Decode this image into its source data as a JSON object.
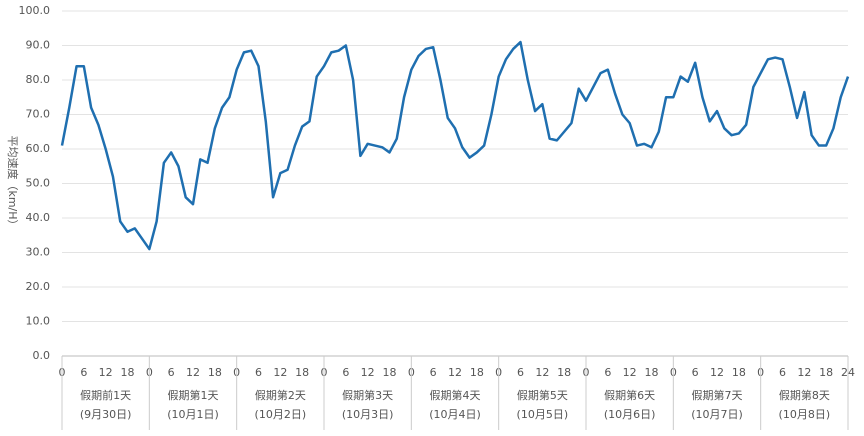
{
  "chart_data": {
    "type": "line",
    "y_label": "平均速度（km/H）",
    "color": "#1f6fb0",
    "grid": true,
    "ylim": [
      0,
      100
    ],
    "yticks": [
      {
        "value": 0,
        "label": "0.0"
      },
      {
        "value": 10,
        "label": "10.0"
      },
      {
        "value": 20,
        "label": "20.0"
      },
      {
        "value": 30,
        "label": "30.0"
      },
      {
        "value": 40,
        "label": "40.0"
      },
      {
        "value": 50,
        "label": "50.0"
      },
      {
        "value": 60,
        "label": "60.0"
      },
      {
        "value": 70,
        "label": "70.0"
      },
      {
        "value": 80,
        "label": "80.0"
      },
      {
        "value": 90,
        "label": "90.0"
      },
      {
        "value": 100,
        "label": "100.0"
      }
    ],
    "xlim": [
      0,
      216
    ],
    "xticks": [
      0,
      {
        "value": 6,
        "label": "6"
      },
      {
        "value": 12,
        "label": "12"
      },
      {
        "value": 18,
        "label": "18"
      },
      {
        "value": 24,
        "label": "0"
      },
      {
        "value": 30,
        "label": "6"
      },
      {
        "value": 36,
        "label": "12"
      },
      {
        "value": 42,
        "label": "18"
      },
      {
        "value": 48,
        "label": "0"
      },
      {
        "value": 54,
        "label": "6"
      },
      {
        "value": 60,
        "label": "12"
      },
      {
        "value": 66,
        "label": "18"
      },
      {
        "value": 72,
        "label": "0"
      },
      {
        "value": 78,
        "label": "6"
      },
      {
        "value": 84,
        "label": "12"
      },
      {
        "value": 90,
        "label": "18"
      },
      {
        "value": 96,
        "label": "0"
      },
      {
        "value": 102,
        "label": "6"
      },
      {
        "value": 108,
        "label": "12"
      },
      {
        "value": 114,
        "label": "18"
      },
      {
        "value": 120,
        "label": "0"
      },
      {
        "value": 126,
        "label": "6"
      },
      {
        "value": 132,
        "label": "12"
      },
      {
        "value": 138,
        "label": "18"
      },
      {
        "value": 144,
        "label": "0"
      },
      {
        "value": 150,
        "label": "6"
      },
      {
        "value": 156,
        "label": "12"
      },
      {
        "value": 162,
        "label": "18"
      },
      {
        "value": 168,
        "label": "0"
      },
      {
        "value": 174,
        "label": "6"
      },
      {
        "value": 180,
        "label": "12"
      },
      {
        "value": 186,
        "label": "18"
      },
      {
        "value": 192,
        "label": "0"
      },
      {
        "value": 198,
        "label": "6"
      },
      {
        "value": 204,
        "label": "12"
      },
      {
        "value": 210,
        "label": "18"
      },
      {
        "value": 216,
        "label": "24"
      }
    ],
    "x_groups": [
      {
        "label": "假期前1天",
        "date": "(9月30日)"
      },
      {
        "label": "假期第1天",
        "date": "(10月1日)"
      },
      {
        "label": "假期第2天",
        "date": "(10月2日)"
      },
      {
        "label": "假期第3天",
        "date": "(10月3日)"
      },
      {
        "label": "假期第4天",
        "date": "(10月4日)"
      },
      {
        "label": "假期第5天",
        "date": "(10月5日)"
      },
      {
        "label": "假期第6天",
        "date": "(10月6日)"
      },
      {
        "label": "假期第7天",
        "date": "(10月7日)"
      },
      {
        "label": "假期第8天",
        "date": "(10月8日)"
      }
    ],
    "x": [
      0,
      2,
      4,
      6,
      8,
      10,
      12,
      14,
      16,
      18,
      20,
      22,
      24,
      26,
      28,
      30,
      32,
      34,
      36,
      38,
      40,
      42,
      44,
      46,
      48,
      50,
      52,
      54,
      56,
      58,
      60,
      62,
      64,
      66,
      68,
      70,
      72,
      74,
      76,
      78,
      80,
      82,
      84,
      86,
      88,
      90,
      92,
      94,
      96,
      98,
      100,
      102,
      104,
      106,
      108,
      110,
      112,
      114,
      116,
      118,
      120,
      122,
      124,
      126,
      128,
      130,
      132,
      134,
      136,
      138,
      140,
      142,
      144,
      146,
      148,
      150,
      152,
      154,
      156,
      158,
      160,
      162,
      164,
      166,
      168,
      170,
      172,
      174,
      176,
      178,
      180,
      182,
      184,
      186,
      188,
      190,
      192,
      194,
      196,
      198,
      200,
      202,
      204,
      206,
      208,
      210,
      212,
      214,
      216
    ],
    "values": [
      61,
      72,
      84,
      84,
      72,
      67,
      60,
      52,
      39,
      36,
      37,
      34,
      31,
      39,
      56,
      59,
      55,
      46,
      44,
      57,
      56,
      66,
      72,
      75,
      83,
      88,
      88.5,
      84,
      68,
      46,
      53,
      54,
      61,
      66.5,
      68,
      81,
      84,
      88,
      88.5,
      90,
      80,
      58,
      61.5,
      61,
      60.5,
      59,
      63,
      75,
      83,
      87,
      89,
      89.5,
      80,
      69,
      66,
      60.5,
      57.5,
      59,
      61,
      70,
      81,
      86,
      89,
      91,
      80,
      71,
      73,
      63,
      62.5,
      65,
      67.5,
      77.5,
      74,
      78,
      82,
      83,
      76,
      70,
      67.5,
      61,
      61.5,
      60.5,
      65,
      75,
      75,
      81,
      79.5,
      85,
      75,
      68,
      71,
      66,
      64,
      64.5,
      67,
      78,
      82,
      86,
      86.5,
      86,
      78,
      69,
      76.5,
      64,
      61,
      61,
      66,
      75,
      81
    ]
  }
}
